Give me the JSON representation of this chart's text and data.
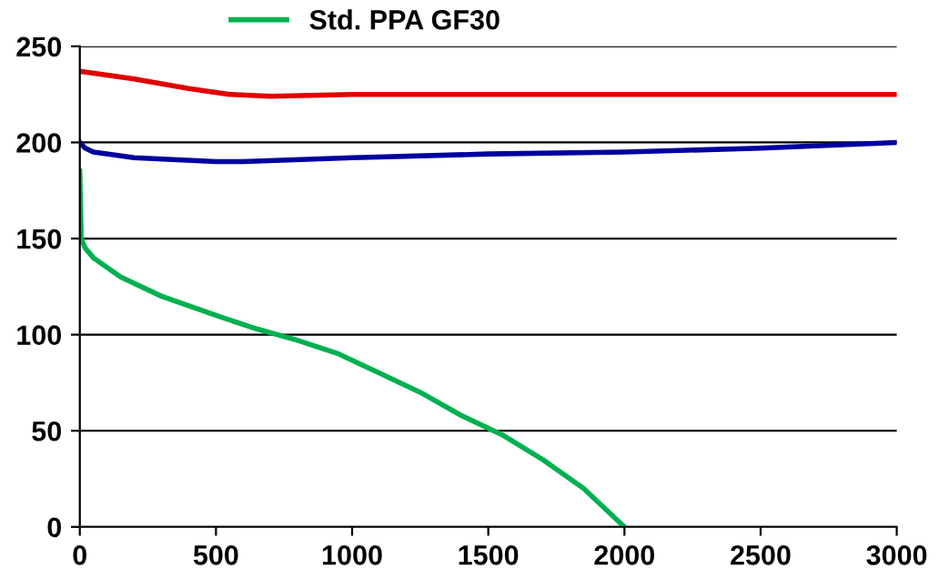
{
  "chart_data": {
    "type": "line",
    "xlim": [
      0,
      3000
    ],
    "xticks": [
      0,
      500,
      1000,
      1500,
      2000,
      2500,
      3000
    ],
    "ylim": [
      0,
      250
    ],
    "yticks": [
      0,
      50,
      100,
      150,
      200,
      250
    ],
    "grid": "y",
    "legend": "top",
    "marker": "none",
    "line_style": "solid",
    "series": [
      {
        "name": "Std. PPA GF30",
        "color": "#00b050",
        "x": [
          0,
          5,
          20,
          50,
          100,
          150,
          300,
          500,
          650,
          800,
          950,
          1100,
          1250,
          1400,
          1550,
          1700,
          1850,
          2000
        ],
        "values": [
          185,
          150,
          145,
          140,
          135,
          130,
          120,
          110,
          103,
          97,
          90,
          80,
          70,
          58,
          48,
          35,
          20,
          0
        ]
      },
      {
        "color": "#0000a0",
        "x": [
          0,
          20,
          50,
          200,
          500,
          600,
          1000,
          1500,
          2000,
          2500,
          3000
        ],
        "values": [
          200,
          197,
          195,
          192,
          190,
          190,
          192,
          194,
          195,
          197,
          200
        ]
      },
      {
        "color": "#e00000",
        "x": [
          0,
          200,
          400,
          550,
          700,
          1000,
          3000
        ],
        "values": [
          237,
          233,
          228,
          225,
          224,
          225,
          225
        ]
      }
    ]
  }
}
